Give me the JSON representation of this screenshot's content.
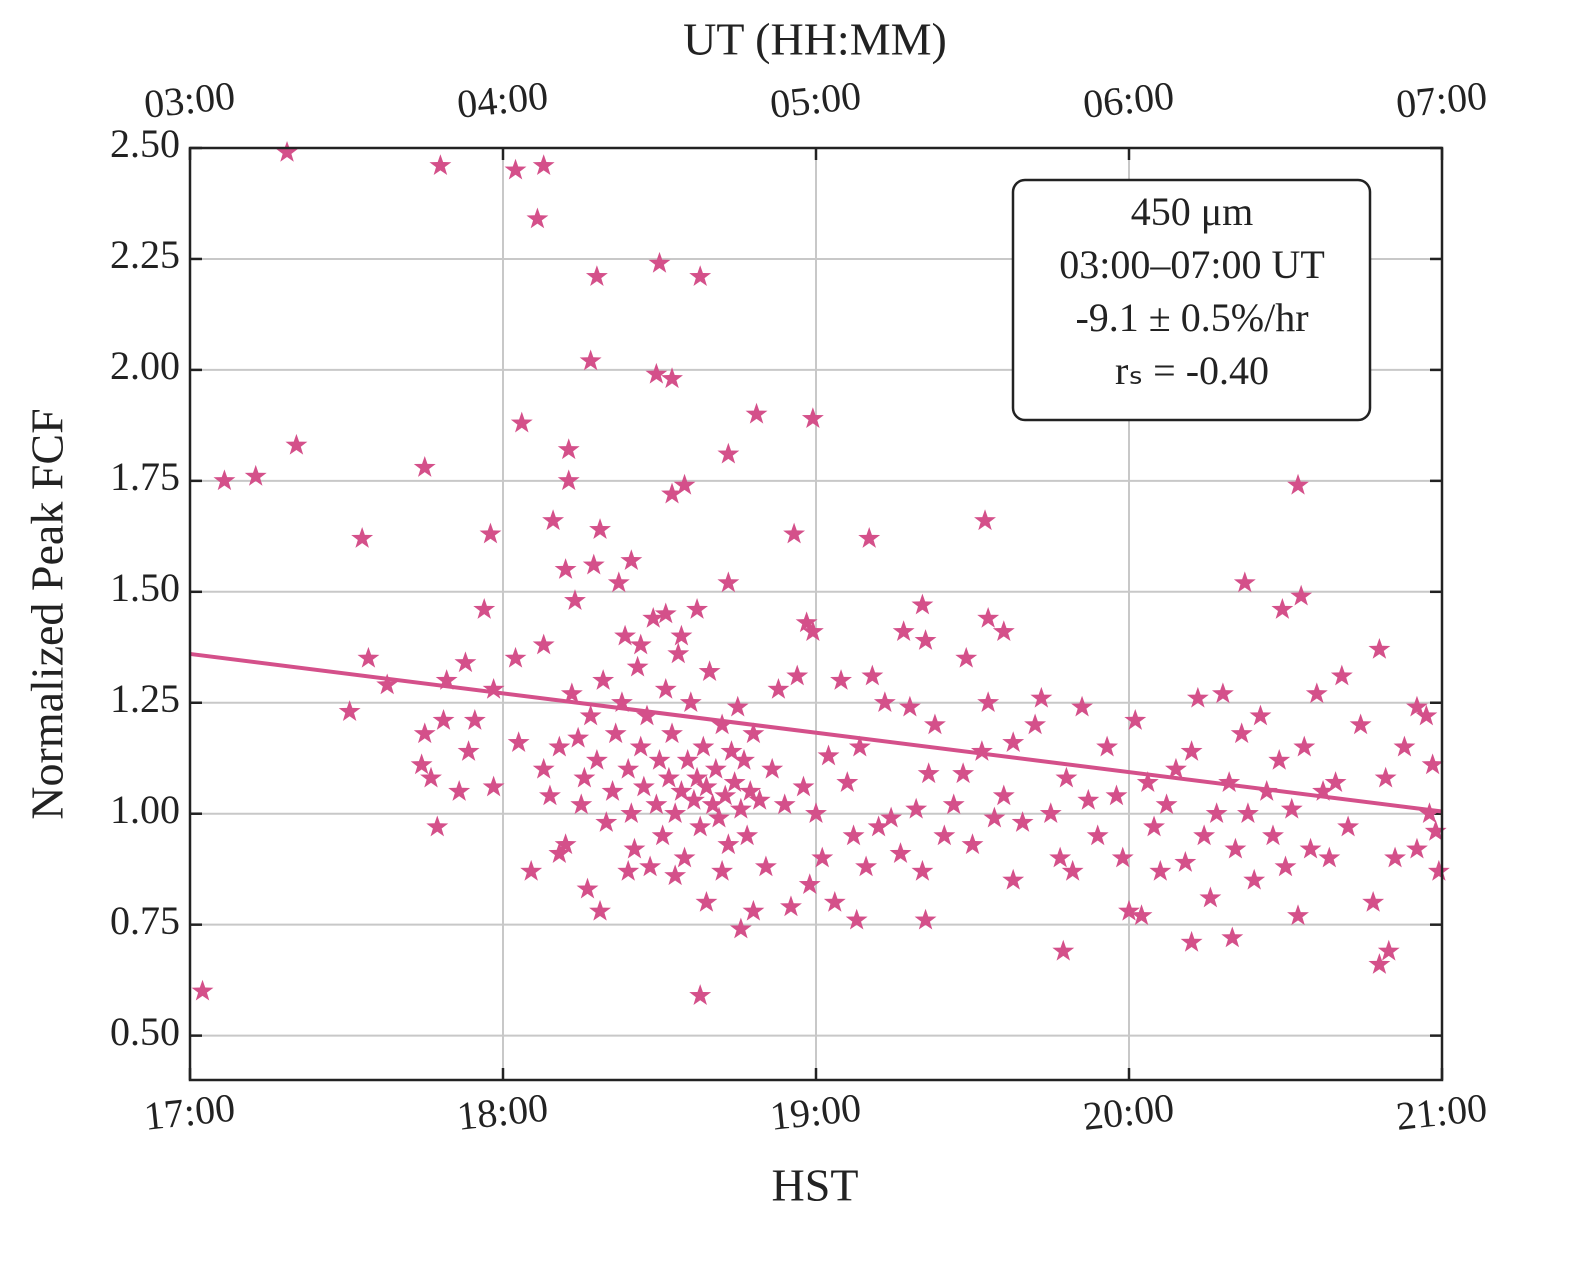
{
  "chart_data": {
    "type": "scatter",
    "xlabel": "HST",
    "x2label": "UT (HH:MM)",
    "ylabel": "Normalized Peak FCF",
    "annotation": [
      "450 μm",
      "03:00–07:00 UT",
      "-9.1 ± 0.5%/hr",
      "rₛ = -0.40"
    ],
    "xlim": [
      17,
      21
    ],
    "xticks": [
      {
        "value": 17,
        "label": "17:00"
      },
      {
        "value": 18,
        "label": "18:00"
      },
      {
        "value": 19,
        "label": "19:00"
      },
      {
        "value": 20,
        "label": "20:00"
      },
      {
        "value": 21,
        "label": "21:00"
      }
    ],
    "x2lim": [
      3,
      7
    ],
    "x2ticks": [
      {
        "value": 3,
        "label": "03:00"
      },
      {
        "value": 4,
        "label": "04:00"
      },
      {
        "value": 5,
        "label": "05:00"
      },
      {
        "value": 6,
        "label": "06:00"
      },
      {
        "value": 7,
        "label": "07:00"
      }
    ],
    "ylim": [
      0.4,
      2.5
    ],
    "yticks": [
      {
        "value": 0.5,
        "label": "0.50"
      },
      {
        "value": 0.75,
        "label": "0.75"
      },
      {
        "value": 1.0,
        "label": "1.00"
      },
      {
        "value": 1.25,
        "label": "1.25"
      },
      {
        "value": 1.5,
        "label": "1.50"
      },
      {
        "value": 1.75,
        "label": "1.75"
      },
      {
        "value": 2.0,
        "label": "2.00"
      },
      {
        "value": 2.25,
        "label": "2.25"
      },
      {
        "value": 2.5,
        "label": "2.50"
      }
    ],
    "grid": true,
    "series": [
      {
        "color": "#d4508a",
        "marker": "star",
        "x": [
          17.04,
          17.11,
          17.21,
          17.31,
          17.34,
          17.51,
          17.55,
          17.57,
          17.63,
          17.75,
          17.8,
          17.79,
          17.75,
          17.74,
          17.77,
          17.81,
          17.82,
          17.86,
          17.88,
          17.91,
          17.89,
          17.94,
          17.96,
          17.97,
          17.97,
          18.04,
          18.11,
          18.13,
          18.06,
          18.04,
          18.05,
          18.09,
          18.13,
          18.16,
          18.21,
          18.21,
          18.18,
          18.27,
          18.3,
          18.28,
          18.31,
          18.31,
          18.41,
          18.49,
          18.5,
          18.54,
          18.63,
          18.63,
          18.54,
          18.58,
          18.72,
          18.81,
          18.72,
          18.76,
          18.99,
          18.93,
          19.17,
          19.54,
          20.54,
          20.37,
          20.55,
          20.49,
          19.79,
          20.2,
          20.33,
          20.83,
          20.8,
          20.8,
          20.68,
          20.92,
          20.97,
          20.98,
          19.34,
          19.55,
          19.6,
          19.28,
          19.35,
          18.97,
          18.99,
          19.48,
          19.13,
          19.35,
          19.63,
          18.22,
          18.24,
          18.26,
          18.25,
          18.28,
          18.3,
          18.32,
          18.33,
          18.35,
          18.36,
          18.38,
          18.39,
          18.4,
          18.41,
          18.42,
          18.43,
          18.44,
          18.45,
          18.46,
          18.47,
          18.48,
          18.49,
          18.5,
          18.51,
          18.52,
          18.53,
          18.54,
          18.55,
          18.56,
          18.57,
          18.58,
          18.59,
          18.6,
          18.61,
          18.62,
          18.63,
          18.64,
          18.65,
          18.66,
          18.67,
          18.68,
          18.69,
          18.7,
          18.71,
          18.72,
          18.73,
          18.74,
          18.75,
          18.76,
          18.77,
          18.78,
          18.79,
          18.8,
          18.82,
          18.84,
          18.86,
          18.88,
          18.9,
          18.92,
          18.94,
          18.96,
          18.98,
          18.2,
          18.23,
          18.29,
          18.37,
          18.44,
          18.52,
          18.57,
          18.62,
          18.18,
          18.15,
          18.13,
          18.2,
          18.4,
          18.55,
          18.65,
          18.7,
          18.8,
          19.0,
          19.02,
          19.04,
          19.06,
          19.08,
          19.1,
          19.12,
          19.14,
          19.16,
          19.18,
          19.2,
          19.22,
          19.24,
          19.27,
          19.3,
          19.32,
          19.34,
          19.36,
          19.38,
          19.41,
          19.44,
          19.47,
          19.5,
          19.53,
          19.55,
          19.57,
          19.6,
          19.63,
          19.66,
          19.7,
          19.72,
          19.75,
          19.78,
          19.8,
          19.82,
          19.85,
          19.87,
          19.9,
          19.93,
          19.96,
          19.98,
          20.0,
          20.02,
          20.04,
          20.06,
          20.08,
          20.1,
          20.12,
          20.15,
          20.18,
          20.2,
          20.22,
          20.24,
          20.26,
          20.28,
          20.3,
          20.32,
          20.34,
          20.36,
          20.38,
          20.4,
          20.42,
          20.44,
          20.46,
          20.48,
          20.5,
          20.52,
          20.54,
          20.56,
          20.58,
          20.6,
          20.62,
          20.64,
          20.66,
          20.7,
          20.74,
          20.78,
          20.82,
          20.85,
          20.88,
          20.92,
          20.95,
          20.99,
          20.96
        ],
        "values": [
          0.6,
          1.75,
          1.76,
          2.49,
          1.83,
          1.23,
          1.62,
          1.35,
          1.29,
          1.78,
          2.46,
          0.97,
          1.18,
          1.11,
          1.08,
          1.21,
          1.3,
          1.05,
          1.34,
          1.21,
          1.14,
          1.46,
          1.63,
          1.06,
          1.28,
          2.45,
          2.34,
          2.46,
          1.88,
          1.35,
          1.16,
          0.87,
          1.38,
          1.66,
          1.82,
          1.75,
          0.91,
          0.83,
          2.21,
          2.02,
          0.78,
          1.64,
          1.57,
          1.99,
          2.24,
          1.98,
          2.21,
          0.59,
          1.72,
          1.74,
          1.81,
          1.9,
          1.52,
          0.74,
          1.89,
          1.63,
          1.62,
          1.66,
          1.74,
          1.52,
          1.49,
          1.46,
          0.69,
          0.71,
          0.72,
          0.69,
          0.66,
          1.37,
          1.31,
          1.24,
          1.11,
          0.96,
          1.47,
          1.44,
          1.41,
          1.41,
          1.39,
          1.43,
          1.41,
          1.35,
          0.76,
          0.76,
          0.85,
          1.27,
          1.17,
          1.08,
          1.02,
          1.22,
          1.12,
          1.3,
          0.98,
          1.05,
          1.18,
          1.25,
          1.4,
          1.1,
          1.0,
          0.92,
          1.33,
          1.15,
          1.06,
          1.22,
          0.88,
          1.44,
          1.02,
          1.12,
          0.95,
          1.28,
          1.08,
          1.18,
          1.0,
          1.36,
          1.05,
          0.9,
          1.12,
          1.25,
          1.03,
          1.08,
          0.97,
          1.15,
          1.06,
          1.32,
          1.02,
          1.1,
          0.99,
          1.2,
          1.04,
          0.93,
          1.14,
          1.07,
          1.24,
          1.01,
          1.12,
          0.95,
          1.05,
          1.18,
          1.03,
          0.88,
          1.1,
          1.28,
          1.02,
          0.79,
          1.31,
          1.06,
          0.84,
          1.55,
          1.48,
          1.56,
          1.52,
          1.38,
          1.45,
          1.4,
          1.46,
          1.15,
          1.04,
          1.1,
          0.93,
          0.87,
          0.86,
          0.8,
          0.87,
          0.78,
          1.0,
          0.9,
          1.13,
          0.8,
          1.3,
          1.07,
          0.95,
          1.15,
          0.88,
          1.31,
          0.97,
          1.25,
          0.99,
          0.91,
          1.24,
          1.01,
          0.87,
          1.09,
          1.2,
          0.95,
          1.02,
          1.09,
          0.93,
          1.14,
          1.25,
          0.99,
          1.04,
          1.16,
          0.98,
          1.2,
          1.26,
          1.0,
          0.9,
          1.08,
          0.87,
          1.24,
          1.03,
          0.95,
          1.15,
          1.04,
          0.9,
          0.78,
          1.21,
          0.77,
          1.07,
          0.97,
          0.87,
          1.02,
          1.1,
          0.89,
          1.14,
          1.26,
          0.95,
          0.81,
          1.0,
          1.27,
          1.07,
          0.92,
          1.18,
          1.0,
          0.85,
          1.22,
          1.05,
          0.95,
          1.12,
          0.88,
          1.01,
          0.77,
          1.15,
          0.92,
          1.27,
          1.05,
          0.9,
          1.07,
          0.97,
          1.2,
          0.8,
          1.08,
          0.9,
          1.15,
          0.92,
          1.22,
          0.87,
          1.0
        ]
      },
      {
        "color": "#d4508a",
        "marker": "line",
        "x": [
          17,
          21
        ],
        "values": [
          1.36,
          1.005
        ]
      }
    ]
  }
}
